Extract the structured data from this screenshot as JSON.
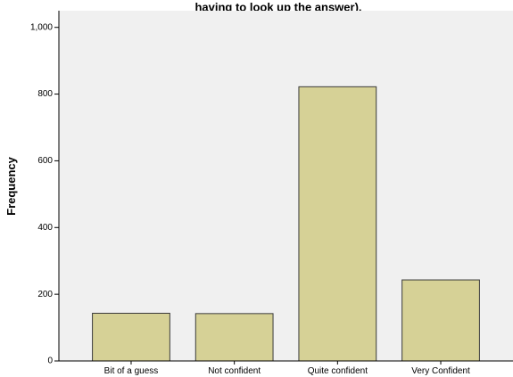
{
  "chart_data": {
    "type": "bar",
    "title": "having to look up the answer).",
    "xlabel": "",
    "ylabel": "Frequency",
    "categories": [
      "Bit of a guess",
      "Not confident",
      "Quite confident",
      "Very Confident"
    ],
    "values": [
      143,
      142,
      822,
      243
    ],
    "ylim": [
      0,
      1050
    ],
    "yticks": [
      0,
      200,
      400,
      600,
      800,
      1000
    ],
    "ytick_labels": [
      "0",
      "200",
      "400",
      "600",
      "800",
      "1,000"
    ],
    "grid": false,
    "legend": "none",
    "colors": {
      "bar_fill": "#d6d196",
      "bar_stroke": "#3a3a3a",
      "plot_background": "#f0f0f0",
      "axis": "#000000"
    }
  }
}
